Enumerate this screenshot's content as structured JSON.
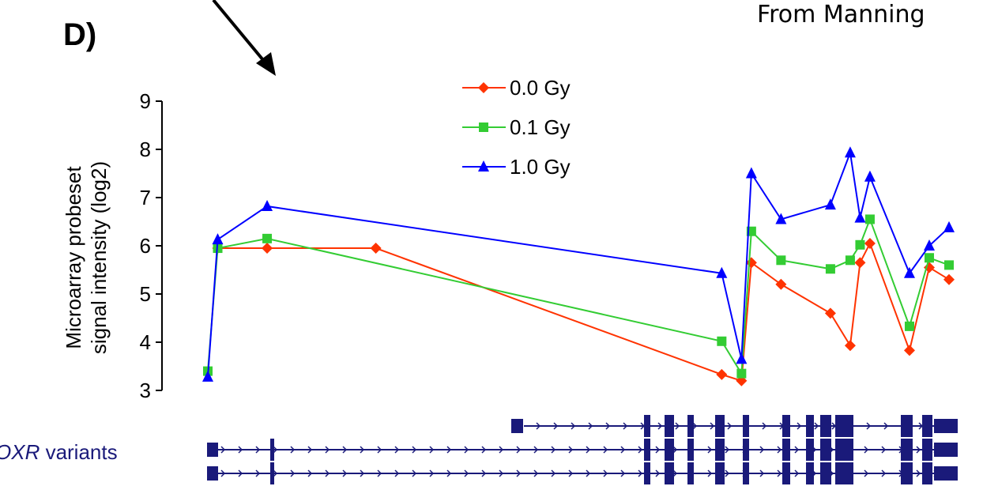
{
  "panel_label": "D)",
  "credit": "From Manning",
  "gene_track": {
    "label_italic": "OXR",
    "label_rest": " variants",
    "color": "#1a1a7a"
  },
  "colors": {
    "axis": "#000000",
    "background": "#ffffff"
  },
  "chart_data": {
    "type": "line",
    "title": "",
    "xlabel": "",
    "ylabel_lines": [
      "Microarray probeset",
      "signal intensity (log2)"
    ],
    "ylim": [
      3,
      9
    ],
    "yticks": [
      3,
      4,
      5,
      6,
      7,
      8,
      9
    ],
    "grid": false,
    "legend_position": "top-center",
    "x_axis": "unlabeled probeset position along gene",
    "series": [
      {
        "name": "0.0 Gy",
        "color": "#ff3300",
        "marker": "diamond",
        "points": [
          [
            6,
            5.95
          ],
          [
            17,
            5.95
          ],
          [
            1,
            5.95
          ],
          [
            52,
            3.33
          ],
          [
            54,
            3.2
          ],
          [
            55,
            5.65
          ],
          [
            58,
            5.2
          ],
          [
            63,
            4.6
          ],
          [
            65,
            3.93
          ],
          [
            66,
            5.65
          ],
          [
            67,
            6.05
          ],
          [
            71,
            3.83
          ],
          [
            73,
            5.55
          ],
          [
            75,
            5.3
          ]
        ]
      },
      {
        "name": "0.1 Gy",
        "color": "#33cc33",
        "marker": "square",
        "points": [
          [
            0,
            3.4
          ],
          [
            1,
            5.95
          ],
          [
            6,
            6.15
          ],
          [
            52,
            4.02
          ],
          [
            54,
            3.35
          ],
          [
            55,
            6.3
          ],
          [
            58,
            5.7
          ],
          [
            63,
            5.52
          ],
          [
            65,
            5.7
          ],
          [
            66,
            6.02
          ],
          [
            67,
            6.55
          ],
          [
            71,
            4.33
          ],
          [
            73,
            5.75
          ],
          [
            75,
            5.6
          ]
        ]
      },
      {
        "name": "1.0 Gy",
        "color": "#0000ff",
        "marker": "triangle",
        "points": [
          [
            0,
            3.28
          ],
          [
            1,
            6.13
          ],
          [
            6,
            6.82
          ],
          [
            52,
            5.43
          ],
          [
            54,
            3.65
          ],
          [
            55,
            7.5
          ],
          [
            58,
            6.55
          ],
          [
            63,
            6.85
          ],
          [
            65,
            7.93
          ],
          [
            66,
            6.58
          ],
          [
            67,
            7.43
          ],
          [
            71,
            5.43
          ],
          [
            73,
            6.0
          ],
          [
            75,
            6.38
          ]
        ]
      }
    ]
  }
}
